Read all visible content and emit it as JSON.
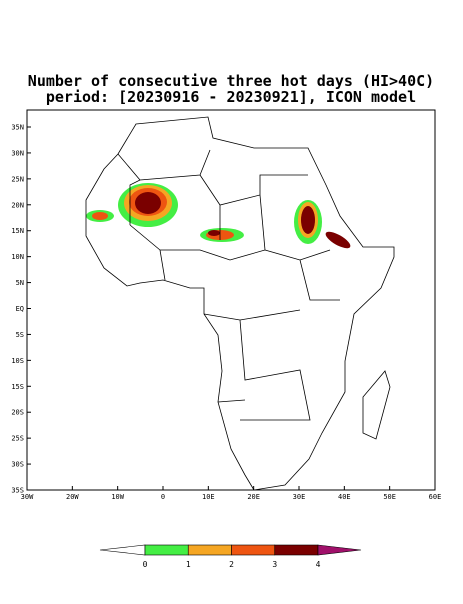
{
  "title": [
    "Number of consecutive three hot days (HI>40C)",
    "period: [20230916 - 20230921], ICON model"
  ],
  "map": {
    "lat_ticks": [
      "35N",
      "30N",
      "25N",
      "20N",
      "15N",
      "10N",
      "5N",
      "EQ",
      "5S",
      "10S",
      "15S",
      "20S",
      "25S",
      "30S",
      "35S"
    ],
    "lon_ticks": [
      "30W",
      "20W",
      "10W",
      "0",
      "10E",
      "20E",
      "30E",
      "40E",
      "50E",
      "60E"
    ]
  },
  "colorbar": {
    "levels": [
      0,
      1,
      2,
      3,
      4
    ],
    "colors": [
      "#ffffff",
      "#44ee44",
      "#f5a623",
      "#ee5511",
      "#7a0000",
      "#a0106a"
    ]
  }
}
